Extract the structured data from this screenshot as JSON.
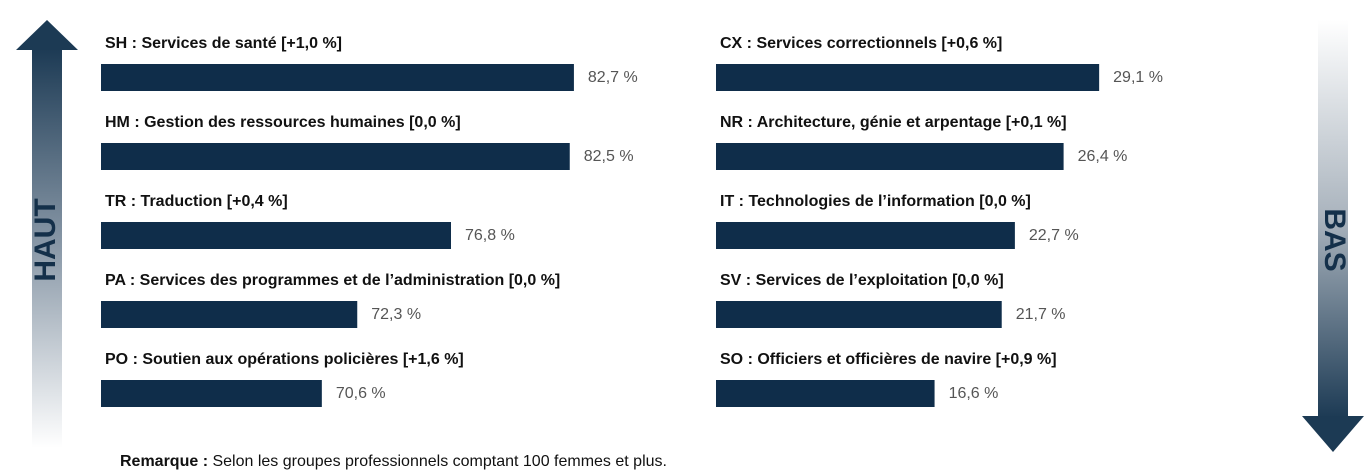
{
  "chart_data": [
    {
      "type": "bar",
      "orientation": "horizontal",
      "annotation": "HAUT",
      "color": "#0f2d4a",
      "xlim": [
        60,
        84
      ],
      "categories": [
        "SH : Services de santé [+1,0 %]",
        "HM : Gestion des ressources humaines [0,0 %]",
        "TR : Traduction [+0,4 %]",
        "PA : Services des programmes et de l’administration [0,0 %]",
        "PO : Soutien aux opérations policières [+1,6 %]"
      ],
      "values": [
        82.7,
        82.5,
        76.8,
        72.3,
        70.6
      ],
      "value_labels": [
        "82,7 %",
        "82,5 %",
        "76,8 %",
        "72,3 %",
        "70,6 %"
      ]
    },
    {
      "type": "bar",
      "orientation": "horizontal",
      "annotation": "BAS",
      "color": "#0f2d4a",
      "xlim": [
        0,
        30
      ],
      "categories": [
        "CX : Services correctionnels [+0,6 %]",
        "NR : Architecture, génie et arpentage [+0,1 %]",
        "IT : Technologies de l’information [0,0 %]",
        "SV : Services de l’exploitation [0,0 %]",
        "SO : Officiers et officières de navire [+0,9 %]"
      ],
      "values": [
        29.1,
        26.4,
        22.7,
        21.7,
        16.6
      ],
      "value_labels": [
        "29,1 %",
        "26,4 %",
        "22,7 %",
        "21,7 %",
        "16,6 %"
      ]
    }
  ],
  "note": {
    "label": "Remarque :",
    "text": "Selon les groupes professionnels comptant 100 femmes et plus."
  }
}
